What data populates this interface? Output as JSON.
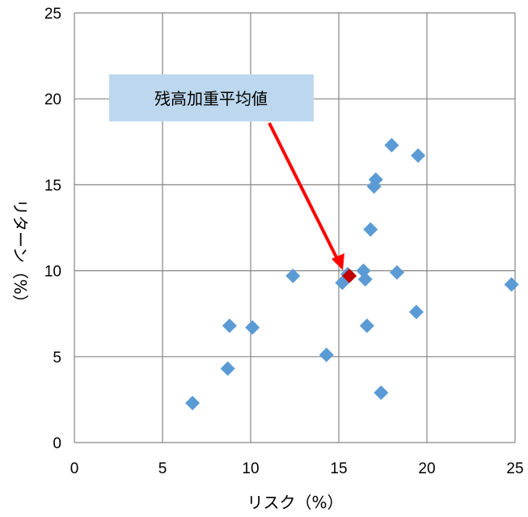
{
  "chart_data": {
    "type": "scatter",
    "title": "",
    "xlabel": "リスク（%）",
    "ylabel": "リターン（%）",
    "xlim": [
      0,
      25
    ],
    "ylim": [
      0,
      25
    ],
    "xticks": [
      0,
      5,
      10,
      15,
      20,
      25
    ],
    "yticks": [
      0,
      5,
      10,
      15,
      20,
      25
    ],
    "grid": true,
    "legend": "none",
    "series": [
      {
        "color": "#5b9bd5",
        "marker": "diamond",
        "points": [
          {
            "x": 6.7,
            "y": 2.3
          },
          {
            "x": 8.7,
            "y": 4.3
          },
          {
            "x": 8.8,
            "y": 6.8
          },
          {
            "x": 10.1,
            "y": 6.7
          },
          {
            "x": 12.4,
            "y": 9.7
          },
          {
            "x": 14.3,
            "y": 5.1
          },
          {
            "x": 15.2,
            "y": 9.3
          },
          {
            "x": 15.5,
            "y": 9.8
          },
          {
            "x": 16.4,
            "y": 10.0
          },
          {
            "x": 16.5,
            "y": 9.5
          },
          {
            "x": 16.6,
            "y": 6.8
          },
          {
            "x": 16.8,
            "y": 12.4
          },
          {
            "x": 17.0,
            "y": 14.9
          },
          {
            "x": 17.1,
            "y": 15.3
          },
          {
            "x": 17.4,
            "y": 2.9
          },
          {
            "x": 18.0,
            "y": 17.3
          },
          {
            "x": 18.3,
            "y": 9.9
          },
          {
            "x": 19.4,
            "y": 7.6
          },
          {
            "x": 19.5,
            "y": 16.7
          },
          {
            "x": 24.8,
            "y": 9.2
          }
        ]
      },
      {
        "name": "残高加重平均値",
        "color": "#c00000",
        "marker": "diamond",
        "points": [
          {
            "x": 15.6,
            "y": 9.7
          }
        ]
      }
    ],
    "annotations": [
      {
        "text": "残高加重平均値",
        "target_series": 1,
        "box_color": "#bdd7ee",
        "arrow_color": "#ff0000"
      }
    ]
  }
}
